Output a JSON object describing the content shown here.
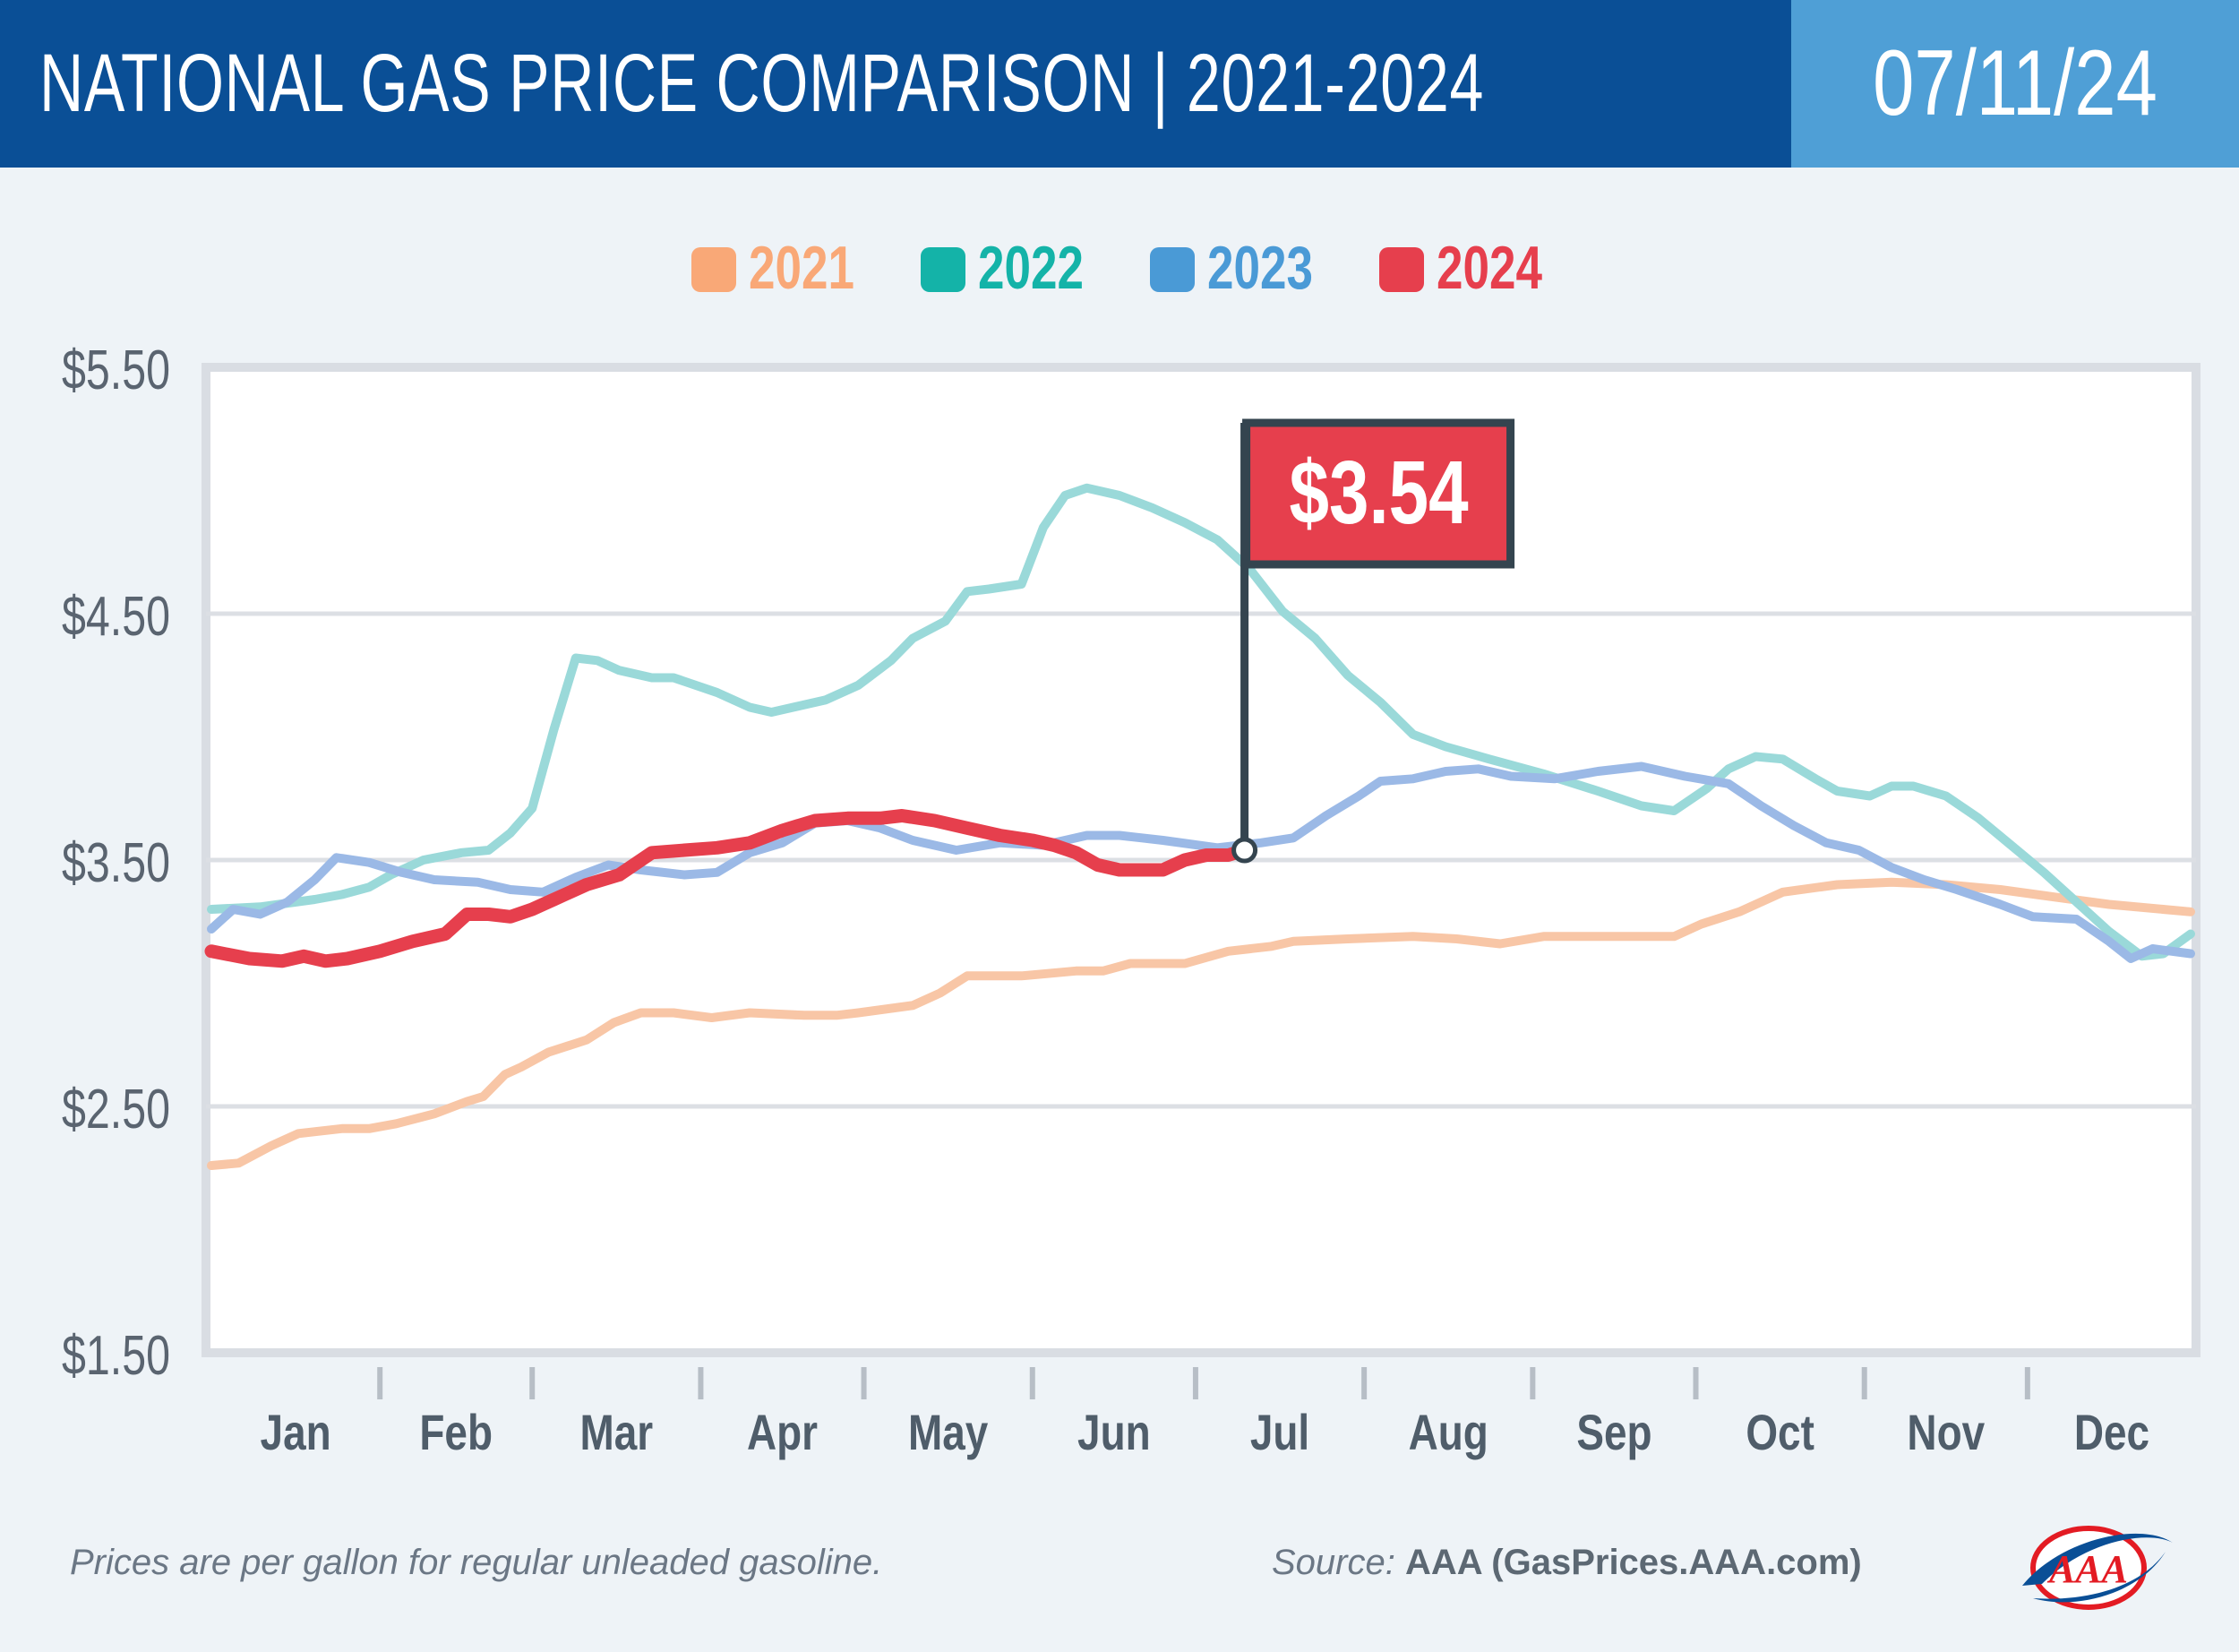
{
  "header": {
    "title": "NATIONAL GAS PRICE COMPARISON | 2021-2024",
    "date": "07/11/24"
  },
  "footer": {
    "note": "Prices are per gallon for regular unleaded gasoline.",
    "source_label": "Source:",
    "source_value": "AAA (GasPrices.AAA.com)",
    "logo_text": "AAA"
  },
  "colors": {
    "header": "#0a4f96",
    "date_box": "#4f9fd6",
    "flag": "#e63f4d",
    "flag_pole": "#34444f"
  },
  "chart_data": {
    "type": "line",
    "title": "",
    "xlabel": "",
    "ylabel": "",
    "ylim": [
      1.5,
      5.5
    ],
    "yticks": [
      1.5,
      2.5,
      3.5,
      4.5,
      5.5
    ],
    "ytick_labels": [
      "$1.50",
      "$2.50",
      "$3.50",
      "$4.50",
      "$5.50"
    ],
    "months": [
      "Jan",
      "Feb",
      "Mar",
      "Apr",
      "May",
      "Jun",
      "Jul",
      "Aug",
      "Sep",
      "Oct",
      "Nov",
      "Dec"
    ],
    "grid": "horizontal",
    "legend_position": "top-center",
    "annotation": {
      "label": "$3.54",
      "series": "2024",
      "day": 191,
      "value": 3.54
    },
    "series": [
      {
        "name": "2021",
        "color": "#f9a877",
        "line_color": "#f8c6a6",
        "points": [
          [
            1,
            2.26
          ],
          [
            6,
            2.27
          ],
          [
            12,
            2.34
          ],
          [
            17,
            2.39
          ],
          [
            25,
            2.41
          ],
          [
            30,
            2.41
          ],
          [
            35,
            2.43
          ],
          [
            42,
            2.47
          ],
          [
            48,
            2.52
          ],
          [
            51,
            2.54
          ],
          [
            55,
            2.63
          ],
          [
            58,
            2.66
          ],
          [
            63,
            2.72
          ],
          [
            70,
            2.77
          ],
          [
            75,
            2.84
          ],
          [
            80,
            2.88
          ],
          [
            86,
            2.88
          ],
          [
            93,
            2.86
          ],
          [
            100,
            2.88
          ],
          [
            110,
            2.87
          ],
          [
            116,
            2.87
          ],
          [
            120,
            2.88
          ],
          [
            130,
            2.91
          ],
          [
            135,
            2.96
          ],
          [
            140,
            3.03
          ],
          [
            150,
            3.03
          ],
          [
            160,
            3.05
          ],
          [
            165,
            3.05
          ],
          [
            170,
            3.08
          ],
          [
            180,
            3.08
          ],
          [
            188,
            3.13
          ],
          [
            196,
            3.15
          ],
          [
            200,
            3.17
          ],
          [
            210,
            3.18
          ],
          [
            222,
            3.19
          ],
          [
            230,
            3.18
          ],
          [
            238,
            3.16
          ],
          [
            246,
            3.19
          ],
          [
            255,
            3.19
          ],
          [
            264,
            3.19
          ],
          [
            270,
            3.19
          ],
          [
            275,
            3.24
          ],
          [
            282,
            3.29
          ],
          [
            290,
            3.37
          ],
          [
            300,
            3.4
          ],
          [
            310,
            3.41
          ],
          [
            320,
            3.4
          ],
          [
            330,
            3.38
          ],
          [
            340,
            3.35
          ],
          [
            350,
            3.32
          ],
          [
            365,
            3.29
          ]
        ]
      },
      {
        "name": "2022",
        "color": "#14b3a8",
        "line_color": "#9ad9d9",
        "points": [
          [
            1,
            3.3
          ],
          [
            10,
            3.31
          ],
          [
            20,
            3.34
          ],
          [
            25,
            3.36
          ],
          [
            30,
            3.39
          ],
          [
            34,
            3.44
          ],
          [
            40,
            3.5
          ],
          [
            47,
            3.53
          ],
          [
            52,
            3.54
          ],
          [
            56,
            3.61
          ],
          [
            60,
            3.71
          ],
          [
            64,
            4.03
          ],
          [
            68,
            4.32
          ],
          [
            72,
            4.31
          ],
          [
            76,
            4.27
          ],
          [
            82,
            4.24
          ],
          [
            86,
            4.24
          ],
          [
            94,
            4.18
          ],
          [
            100,
            4.12
          ],
          [
            104,
            4.1
          ],
          [
            108,
            4.12
          ],
          [
            114,
            4.15
          ],
          [
            120,
            4.21
          ],
          [
            126,
            4.31
          ],
          [
            130,
            4.4
          ],
          [
            136,
            4.47
          ],
          [
            140,
            4.59
          ],
          [
            144,
            4.6
          ],
          [
            150,
            4.62
          ],
          [
            154,
            4.85
          ],
          [
            158,
            4.98
          ],
          [
            162,
            5.01
          ],
          [
            168,
            4.98
          ],
          [
            174,
            4.93
          ],
          [
            180,
            4.87
          ],
          [
            186,
            4.8
          ],
          [
            192,
            4.68
          ],
          [
            198,
            4.51
          ],
          [
            204,
            4.4
          ],
          [
            210,
            4.25
          ],
          [
            216,
            4.14
          ],
          [
            222,
            4.01
          ],
          [
            228,
            3.96
          ],
          [
            236,
            3.91
          ],
          [
            246,
            3.85
          ],
          [
            256,
            3.78
          ],
          [
            264,
            3.72
          ],
          [
            270,
            3.7
          ],
          [
            276,
            3.79
          ],
          [
            280,
            3.87
          ],
          [
            285,
            3.92
          ],
          [
            290,
            3.91
          ],
          [
            296,
            3.83
          ],
          [
            300,
            3.78
          ],
          [
            306,
            3.76
          ],
          [
            310,
            3.8
          ],
          [
            314,
            3.8
          ],
          [
            320,
            3.76
          ],
          [
            326,
            3.67
          ],
          [
            332,
            3.56
          ],
          [
            338,
            3.45
          ],
          [
            344,
            3.33
          ],
          [
            350,
            3.21
          ],
          [
            356,
            3.11
          ],
          [
            360,
            3.12
          ],
          [
            365,
            3.2
          ]
        ]
      },
      {
        "name": "2023",
        "color": "#4a9ad6",
        "line_color": "#9bb9e6",
        "points": [
          [
            1,
            3.22
          ],
          [
            5,
            3.3
          ],
          [
            10,
            3.28
          ],
          [
            15,
            3.33
          ],
          [
            20,
            3.42
          ],
          [
            24,
            3.51
          ],
          [
            30,
            3.49
          ],
          [
            36,
            3.45
          ],
          [
            42,
            3.42
          ],
          [
            50,
            3.41
          ],
          [
            56,
            3.38
          ],
          [
            62,
            3.37
          ],
          [
            68,
            3.43
          ],
          [
            74,
            3.48
          ],
          [
            80,
            3.46
          ],
          [
            88,
            3.44
          ],
          [
            94,
            3.45
          ],
          [
            100,
            3.53
          ],
          [
            106,
            3.57
          ],
          [
            112,
            3.65
          ],
          [
            118,
            3.66
          ],
          [
            124,
            3.63
          ],
          [
            130,
            3.58
          ],
          [
            138,
            3.54
          ],
          [
            146,
            3.57
          ],
          [
            154,
            3.56
          ],
          [
            162,
            3.6
          ],
          [
            168,
            3.6
          ],
          [
            176,
            3.58
          ],
          [
            186,
            3.55
          ],
          [
            194,
            3.57
          ],
          [
            200,
            3.59
          ],
          [
            206,
            3.68
          ],
          [
            212,
            3.76
          ],
          [
            216,
            3.82
          ],
          [
            222,
            3.83
          ],
          [
            228,
            3.86
          ],
          [
            234,
            3.87
          ],
          [
            240,
            3.84
          ],
          [
            248,
            3.83
          ],
          [
            256,
            3.86
          ],
          [
            264,
            3.88
          ],
          [
            272,
            3.84
          ],
          [
            280,
            3.81
          ],
          [
            286,
            3.72
          ],
          [
            292,
            3.64
          ],
          [
            298,
            3.57
          ],
          [
            304,
            3.54
          ],
          [
            310,
            3.47
          ],
          [
            316,
            3.42
          ],
          [
            322,
            3.38
          ],
          [
            330,
            3.32
          ],
          [
            336,
            3.27
          ],
          [
            344,
            3.26
          ],
          [
            350,
            3.17
          ],
          [
            354,
            3.1
          ],
          [
            358,
            3.14
          ],
          [
            365,
            3.12
          ]
        ]
      },
      {
        "name": "2024",
        "color": "#e63f4d",
        "line_color": "#e63f4d",
        "points": [
          [
            1,
            3.13
          ],
          [
            8,
            3.1
          ],
          [
            14,
            3.09
          ],
          [
            18,
            3.11
          ],
          [
            22,
            3.09
          ],
          [
            26,
            3.1
          ],
          [
            32,
            3.13
          ],
          [
            38,
            3.17
          ],
          [
            44,
            3.2
          ],
          [
            48,
            3.28
          ],
          [
            52,
            3.28
          ],
          [
            56,
            3.27
          ],
          [
            60,
            3.3
          ],
          [
            64,
            3.34
          ],
          [
            70,
            3.4
          ],
          [
            76,
            3.44
          ],
          [
            82,
            3.53
          ],
          [
            88,
            3.54
          ],
          [
            94,
            3.55
          ],
          [
            100,
            3.57
          ],
          [
            106,
            3.62
          ],
          [
            112,
            3.66
          ],
          [
            118,
            3.67
          ],
          [
            124,
            3.67
          ],
          [
            128,
            3.68
          ],
          [
            134,
            3.66
          ],
          [
            140,
            3.63
          ],
          [
            146,
            3.6
          ],
          [
            152,
            3.58
          ],
          [
            156,
            3.56
          ],
          [
            160,
            3.53
          ],
          [
            164,
            3.48
          ],
          [
            168,
            3.46
          ],
          [
            172,
            3.46
          ],
          [
            176,
            3.46
          ],
          [
            180,
            3.5
          ],
          [
            184,
            3.52
          ],
          [
            188,
            3.52
          ],
          [
            191,
            3.54
          ]
        ]
      }
    ]
  }
}
